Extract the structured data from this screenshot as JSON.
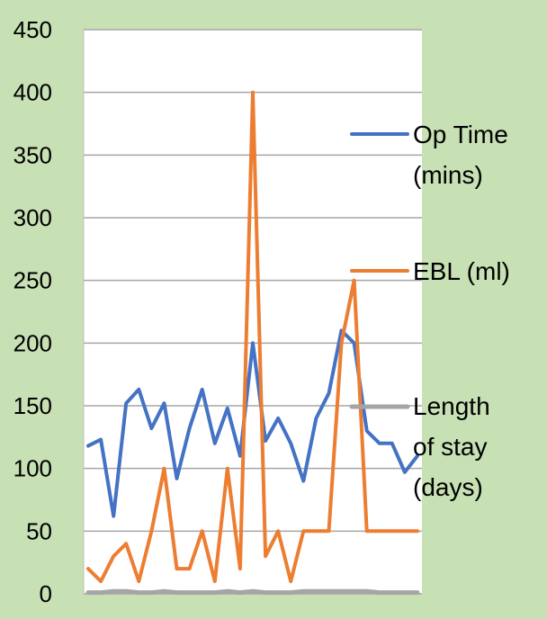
{
  "chart_data": {
    "type": "line",
    "title": "",
    "xlabel": "",
    "ylabel": "",
    "ylim": [
      0,
      450
    ],
    "yticks": [
      0,
      50,
      100,
      150,
      200,
      250,
      300,
      350,
      400,
      450
    ],
    "grid": true,
    "legend_position": "right",
    "series": [
      {
        "name": "Op Time (mins)",
        "legend_lines": [
          "Op Time",
          "(mins)"
        ],
        "color": "#4472c4",
        "values": [
          118,
          123,
          62,
          152,
          163,
          132,
          152,
          92,
          132,
          163,
          120,
          148,
          110,
          200,
          122,
          140,
          120,
          90,
          140,
          160,
          210,
          200,
          130,
          120,
          120,
          97,
          110
        ]
      },
      {
        "name": "EBL (ml)",
        "legend_lines": [
          "EBL (ml)"
        ],
        "color": "#ed7d31",
        "values": [
          20,
          10,
          30,
          40,
          10,
          50,
          100,
          20,
          20,
          50,
          10,
          100,
          20,
          400,
          30,
          50,
          10,
          50,
          50,
          50,
          200,
          250,
          50,
          50,
          50,
          50,
          50
        ]
      },
      {
        "name": "Length of stay (days)",
        "legend_lines": [
          "Length",
          "of stay",
          "(days)"
        ],
        "color": "#a5a5a5",
        "values": [
          1,
          1,
          2,
          2,
          1,
          1,
          2,
          1,
          1,
          1,
          1,
          2,
          1,
          2,
          1,
          1,
          1,
          2,
          2,
          2,
          2,
          2,
          2,
          1,
          1,
          1,
          1
        ]
      }
    ]
  }
}
